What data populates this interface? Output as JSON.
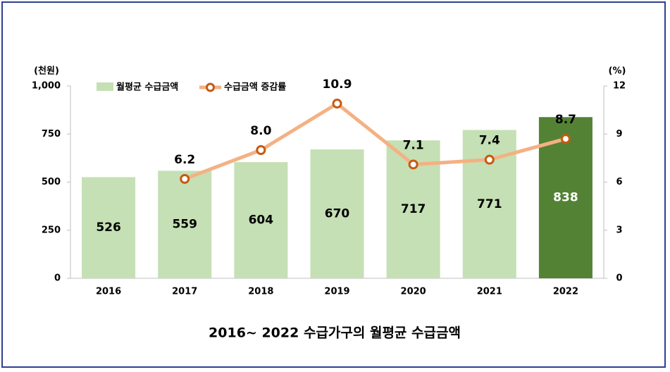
{
  "chart_data": {
    "type": "bar-line",
    "title": "2016~  2022 수급가구의 월평균  수급금액",
    "y_label": "(천원)",
    "y2_label": "(%)",
    "categories": [
      "2016",
      "2017",
      "2018",
      "2019",
      "2020",
      "2021",
      "2022"
    ],
    "series": [
      {
        "name": "월평균 수급금액",
        "type": "bar",
        "colors": [
          "#c5e0b4",
          "#c5e0b4",
          "#c5e0b4",
          "#c5e0b4",
          "#c5e0b4",
          "#c5e0b4",
          "#548235"
        ],
        "label_colors": [
          "#000000",
          "#000000",
          "#000000",
          "#000000",
          "#000000",
          "#000000",
          "#ffffff"
        ],
        "values": [
          526,
          559,
          604,
          670,
          717,
          771,
          838
        ]
      },
      {
        "name": "수급금액 증감률",
        "type": "line",
        "axis": "y2",
        "color": "#f4b183",
        "marker_color": "#c55a11",
        "values": [
          null,
          6.2,
          8.0,
          10.9,
          7.1,
          7.4,
          8.7
        ],
        "value_labels": [
          null,
          "6.2",
          "8.0",
          "10.9",
          "7.1",
          "7.4",
          "8.7"
        ]
      }
    ],
    "ylim": [
      0,
      1000
    ],
    "yticks": [
      0,
      250,
      500,
      750,
      {
        "value": 1000,
        "label": "1,000"
      }
    ],
    "y2lim": [
      0,
      12
    ],
    "y2ticks": [
      0,
      3,
      6,
      9,
      12
    ],
    "legend": "top"
  }
}
